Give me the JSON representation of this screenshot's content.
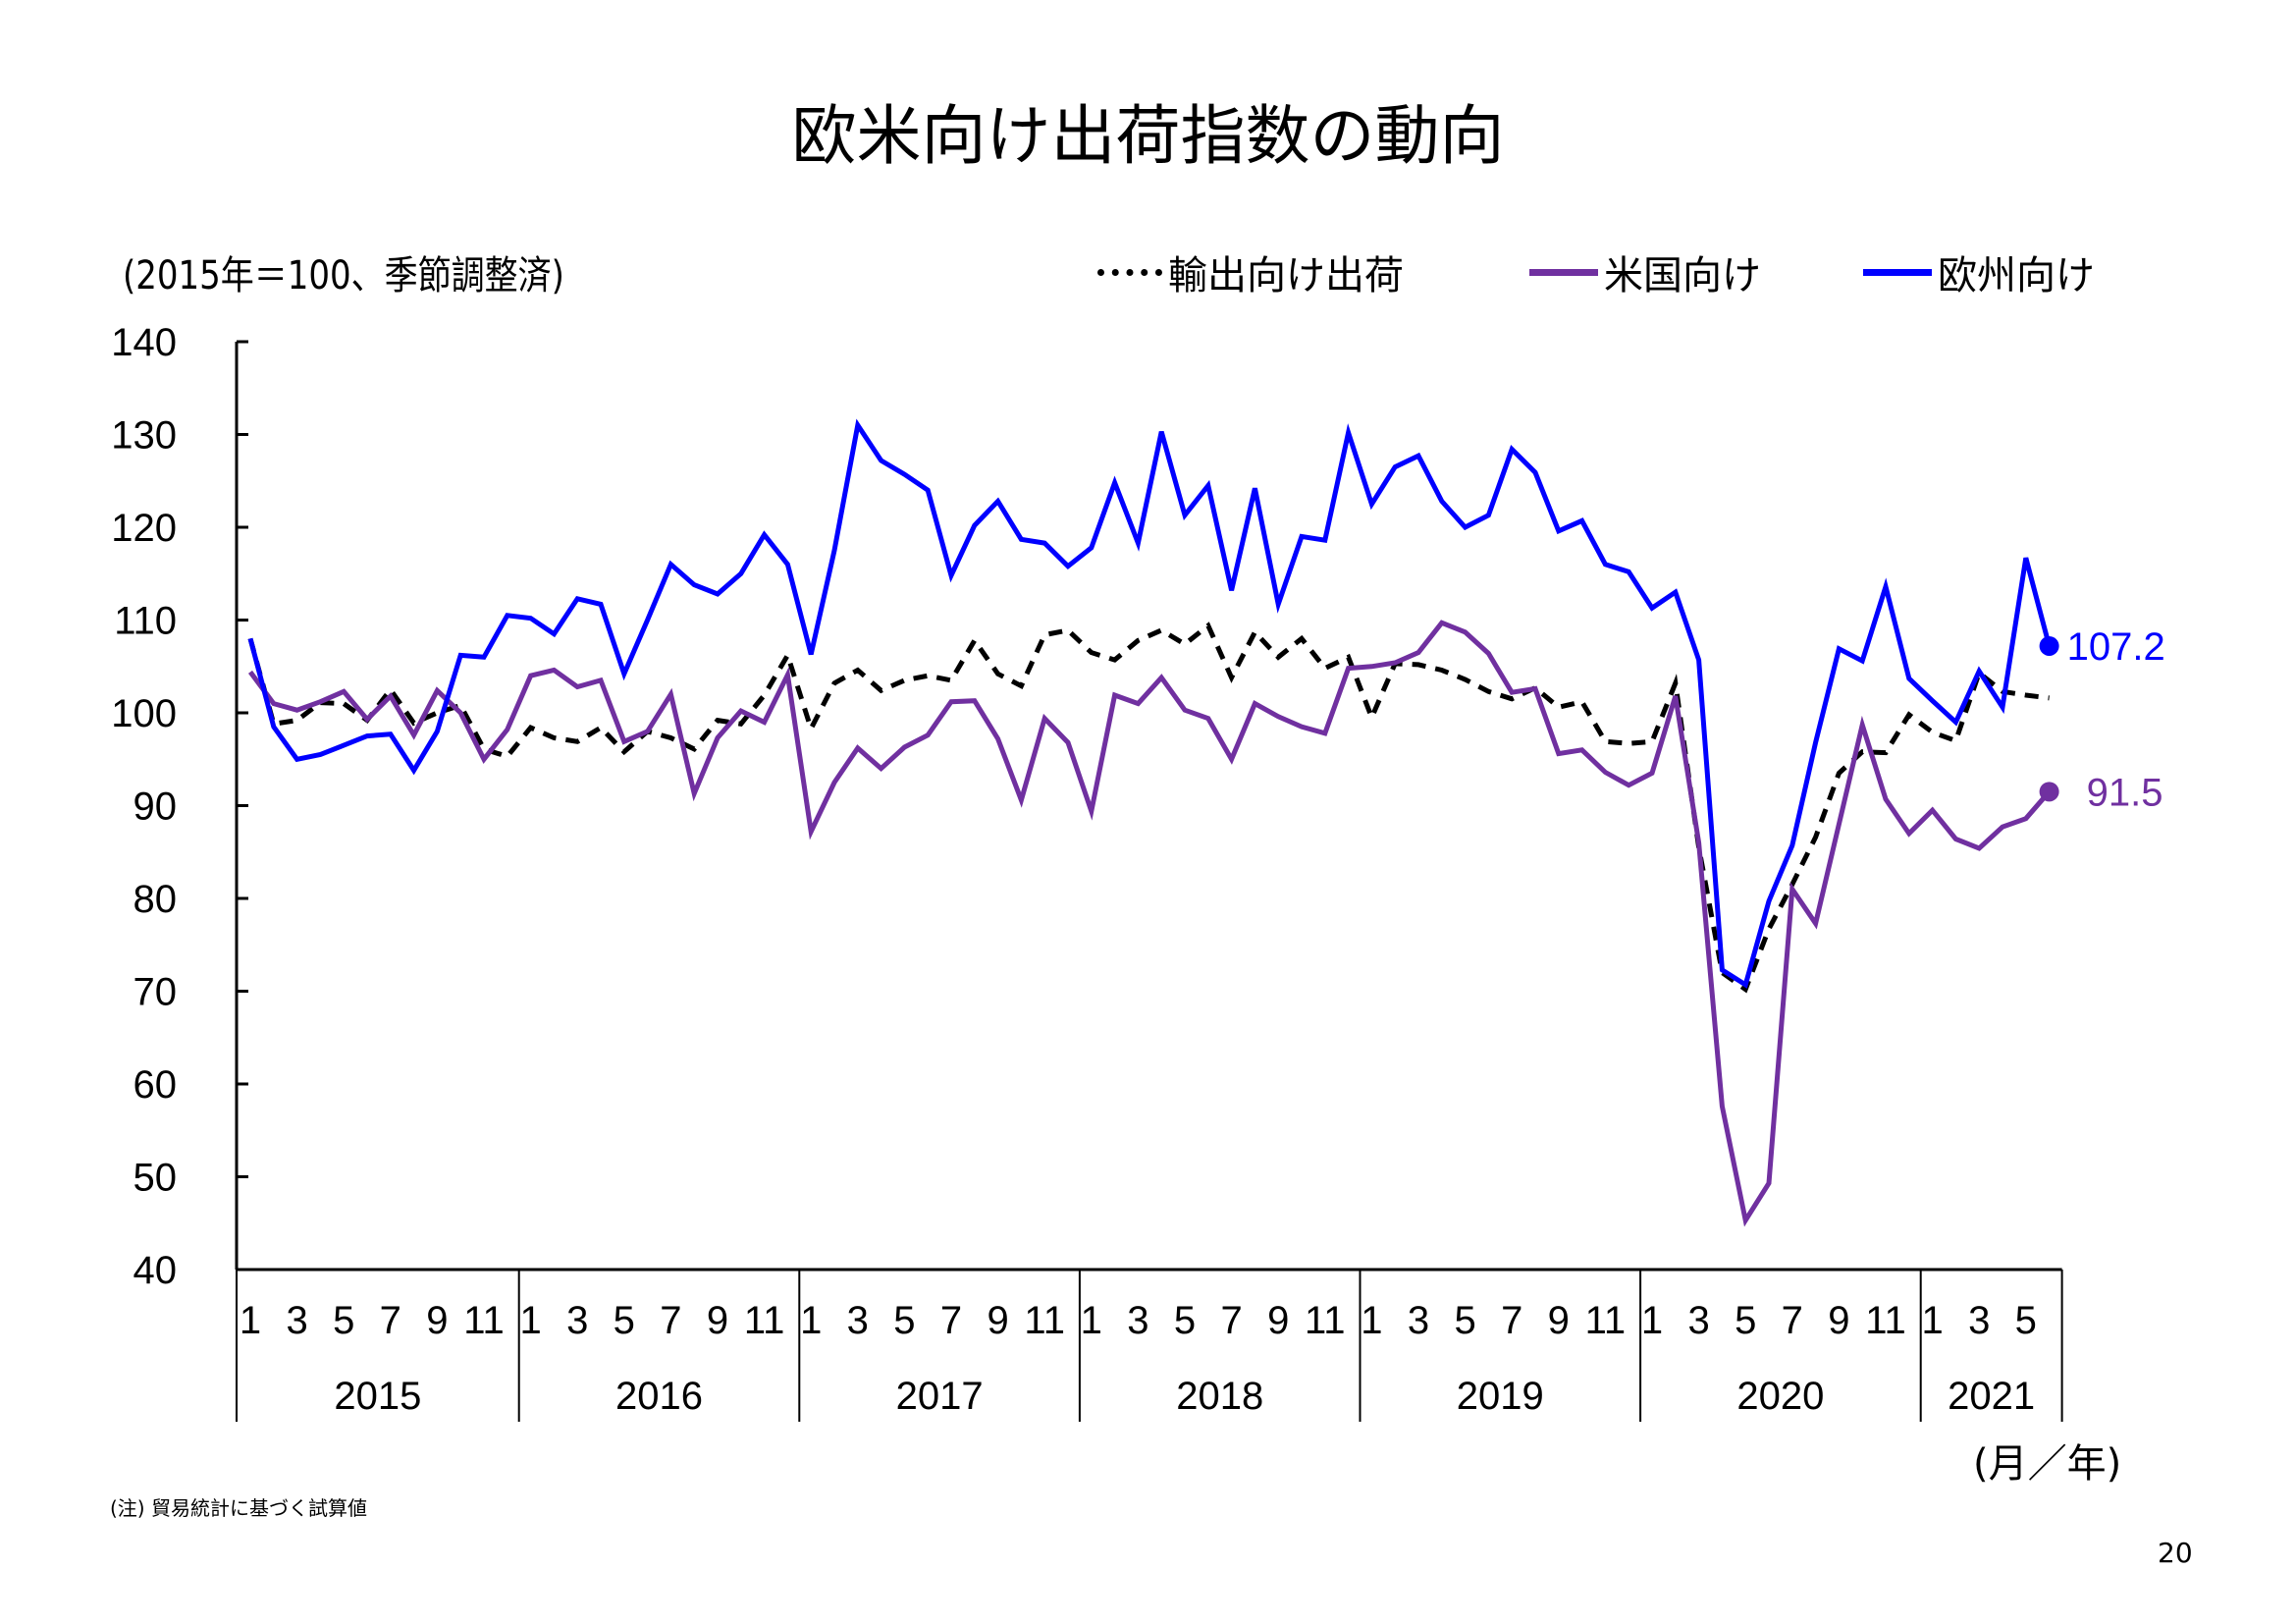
{
  "title": "欧米向け出荷指数の動向",
  "unit_label": "(2015年＝100、季節調整済)",
  "x_unit_label": "(月／年)",
  "footnote": "(注) 貿易統計に基づく試算値",
  "page_number": "20",
  "legend": [
    {
      "label": "輸出向け出荷",
      "color": "#000000",
      "style": "dashed"
    },
    {
      "label": "米国向け",
      "color": "#7030A0",
      "style": "solid"
    },
    {
      "label": "欧州向け",
      "color": "#0000FF",
      "style": "solid"
    }
  ],
  "end_labels": {
    "europe": "107.2",
    "us": "91.5"
  },
  "chart_data": {
    "type": "line",
    "title": "欧米向け出荷指数の動向",
    "ylabel": "(2015年＝100、季節調整済)",
    "xlabel": "(月／年)",
    "ylim": [
      40,
      140
    ],
    "yticks": [
      40,
      50,
      60,
      70,
      80,
      90,
      100,
      110,
      120,
      130,
      140
    ],
    "month_tick_labels": [
      "1",
      "3",
      "5",
      "7",
      "9",
      "11"
    ],
    "years": [
      {
        "label": "2015",
        "months": 12
      },
      {
        "label": "2016",
        "months": 12
      },
      {
        "label": "2017",
        "months": 12
      },
      {
        "label": "2018",
        "months": 12
      },
      {
        "label": "2019",
        "months": 12
      },
      {
        "label": "2020",
        "months": 12
      },
      {
        "label": "2021",
        "months": 6
      }
    ],
    "legend_position": "top-right",
    "grid": false,
    "series": [
      {
        "name": "輸出向け出荷",
        "color": "#000000",
        "dashed": true,
        "values": [
          108,
          98.8,
          99.2,
          101.1,
          101,
          99.2,
          102.5,
          98.9,
          100,
          100.8,
          96.1,
          95.3,
          98.4,
          97.3,
          96.9,
          98.4,
          95.8,
          98,
          97.3,
          96.1,
          99.2,
          98.8,
          101.9,
          106.2,
          98.3,
          103.2,
          104.6,
          102.4,
          103.5,
          104,
          103.5,
          107.8,
          104.2,
          102.9,
          108.4,
          108.9,
          106.5,
          105.7,
          107.8,
          108.9,
          107.4,
          109.4,
          103.8,
          108.7,
          106,
          108,
          104.8,
          106,
          99.5,
          105.3,
          105.2,
          104.6,
          103.6,
          102.3,
          101.5,
          102.7,
          100.6,
          101.2,
          96.9,
          96.7,
          96.9,
          103.2,
          85.5,
          72,
          70.2,
          76.7,
          81.5,
          86.6,
          93.5,
          95.8,
          95.7,
          99.8,
          97.9,
          97,
          104.3,
          102.3,
          101.9,
          101.6
        ]
      },
      {
        "name": "米国向け",
        "color": "#7030A0",
        "dashed": false,
        "values": [
          104.4,
          101,
          100.3,
          101.2,
          102.3,
          99.3,
          101.8,
          97.6,
          102.4,
          100,
          95,
          98.2,
          104,
          104.6,
          102.8,
          103.5,
          96.9,
          98,
          102,
          91.3,
          97.3,
          100.2,
          99,
          104.1,
          87.2,
          92.5,
          96.2,
          94,
          96.3,
          97.6,
          101.2,
          101.3,
          97.2,
          90.6,
          99.4,
          96.8,
          89.4,
          101.9,
          101,
          103.8,
          100.3,
          99.4,
          95,
          101,
          99.6,
          98.5,
          97.8,
          104.8,
          105,
          105.4,
          106.5,
          109.7,
          108.7,
          106.4,
          102.2,
          102.6,
          95.6,
          96,
          93.6,
          92.2,
          93.5,
          101.8,
          86,
          57.6,
          45.3,
          49.3,
          81,
          77.3,
          88,
          98.7,
          90.7,
          87,
          89.5,
          86.4,
          85.4,
          87.7,
          88.6,
          91.5
        ]
      },
      {
        "name": "欧州向け",
        "color": "#0000FF",
        "dashed": false,
        "values": [
          108,
          98.5,
          95,
          95.5,
          96.5,
          97.5,
          97.7,
          93.8,
          98,
          106.2,
          106,
          110.5,
          110.2,
          108.5,
          112.3,
          111.7,
          104.2,
          110,
          116,
          113.8,
          112.8,
          115,
          119.2,
          116,
          106.3,
          117.5,
          131,
          127.2,
          125.7,
          124,
          114.8,
          120.2,
          122.8,
          118.7,
          118.3,
          115.8,
          117.8,
          124.8,
          118.3,
          130.3,
          121.3,
          124.5,
          113.2,
          124.2,
          111.7,
          119,
          118.6,
          130.2,
          122.5,
          126.5,
          127.7,
          122.8,
          120,
          121.3,
          128.4,
          125.9,
          119.6,
          120.7,
          116,
          115.2,
          111.3,
          113,
          105.7,
          72.3,
          70.7,
          79.7,
          85.7,
          96.8,
          106.9,
          105.6,
          113.6,
          103.7,
          101.3,
          99,
          104.5,
          100.6,
          116.7,
          107.2
        ]
      }
    ]
  }
}
